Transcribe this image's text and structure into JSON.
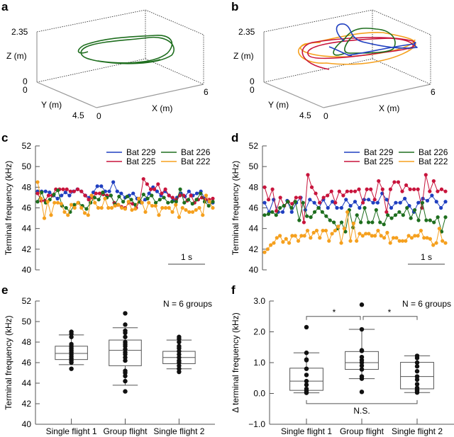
{
  "colors": {
    "bat229": "#1f3fc0",
    "bat225": "#c8143c",
    "bat226": "#1e6e1e",
    "bat222": "#f5a01e",
    "axis": "#666666"
  },
  "chart_data": [
    {
      "panel": "a",
      "type": "line3d",
      "axes": {
        "x": {
          "label": "X (m)",
          "range": [
            0,
            6
          ],
          "ticks": [
            "0",
            "6"
          ]
        },
        "y": {
          "label": "Y (m)",
          "range": [
            0,
            4.5
          ],
          "ticks": [
            "0",
            "4.5"
          ]
        },
        "z": {
          "label": "Z (m)",
          "range": [
            0,
            2.35
          ],
          "ticks": [
            "0",
            "2.35"
          ]
        }
      },
      "series": [
        {
          "name": "Bat 226",
          "color": "#1e6e1e"
        }
      ]
    },
    {
      "panel": "b",
      "type": "line3d",
      "axes": {
        "x": {
          "label": "X (m)",
          "range": [
            0,
            6
          ],
          "ticks": [
            "0",
            "6"
          ]
        },
        "y": {
          "label": "Y (m)",
          "range": [
            0,
            4.5
          ],
          "ticks": [
            "0",
            "4.5"
          ]
        },
        "z": {
          "label": "Z (m)",
          "range": [
            0,
            2.35
          ],
          "ticks": [
            "0",
            "2.35"
          ]
        }
      },
      "series": [
        {
          "name": "Bat 229",
          "color": "#1f3fc0"
        },
        {
          "name": "Bat 225",
          "color": "#c8143c"
        },
        {
          "name": "Bat 226",
          "color": "#1e6e1e"
        },
        {
          "name": "Bat 222",
          "color": "#f5a01e"
        }
      ]
    },
    {
      "panel": "c",
      "type": "line",
      "ylabel": "Terminal frequency (kHz)",
      "ylim": [
        40,
        52
      ],
      "yticks": [
        40,
        42,
        44,
        46,
        48,
        50,
        52
      ],
      "scalebar": "1 s",
      "legend": "top-right",
      "series": [
        {
          "name": "Bat 229",
          "values": [
            47.6,
            47.6,
            47.6,
            47.5,
            47.2,
            46.9,
            47.2,
            47.5,
            47.2,
            47.6,
            47.8,
            47.6,
            47.2,
            47.0,
            47.5,
            48.1,
            48.1,
            47.6,
            47.6,
            48.5,
            47.6,
            47.4,
            47.0,
            47.2,
            47.4,
            46.9,
            46.5,
            46.8,
            47.4,
            48.0,
            47.6,
            47.2,
            47.6,
            47.2,
            46.7,
            47.0,
            47.4,
            47.1,
            47.6,
            47.2,
            47.4,
            47.6,
            46.9,
            46.6,
            46.5
          ]
        },
        {
          "name": "Bat 225",
          "values": [
            47.4,
            46.7,
            46.7,
            47.2,
            47.2,
            47.8,
            47.8,
            47.8,
            47.8,
            47.6,
            47.6,
            47.8,
            47.6,
            47.2,
            46.8,
            47.0,
            47.4,
            47.4,
            47.3,
            47.2,
            47.2,
            46.5,
            46.3,
            46.1,
            46.0,
            46.5,
            46.4,
            46.0,
            46.7,
            48.8,
            48.3,
            47.8,
            47.8,
            48.3,
            47.4,
            47.8,
            47.2,
            47.0,
            46.8,
            47.2,
            47.2,
            46.7,
            47.2,
            46.5,
            46.8,
            47.0,
            46.8,
            46.8,
            46.9
          ]
        },
        {
          "name": "Bat 226",
          "values": [
            46.6,
            47.5,
            46.5,
            46.8,
            47.3,
            47.7,
            46.2,
            46.0,
            45.6,
            46.3,
            46.5,
            46.2,
            45.9,
            46.5,
            47.0,
            46.8,
            47.5,
            47.0,
            47.2,
            46.3,
            47.1,
            46.6,
            47.1,
            46.8,
            46.3,
            46.6,
            47.3,
            46.9,
            47.2,
            46.5,
            46.8,
            47.0,
            46.5,
            46.6,
            46.6,
            47.8,
            46.5,
            46.8,
            46.4,
            46.8,
            47.4,
            46.6,
            46.2,
            46.6
          ]
        },
        {
          "name": "Bat 222",
          "values": [
            48.5,
            46.9,
            45.0,
            46.6,
            45.3,
            46.5,
            46.5,
            46.4,
            45.6,
            45.3,
            46.3,
            46.0,
            46.5,
            46.0,
            45.5,
            45.3,
            47.2,
            46.5,
            46.0,
            46.0,
            46.9,
            46.0,
            46.0,
            46.2,
            46.3,
            46.0,
            45.9,
            46.6,
            45.8,
            45.9,
            46.9,
            46.5,
            45.6,
            46.5,
            46.2,
            46.2,
            45.3,
            46.0,
            46.0,
            46.0,
            45.6,
            46.3,
            45.1,
            46.0,
            45.8,
            45.6,
            45.6,
            45.8,
            46.0,
            45.3,
            47.2,
            46.6,
            46.0
          ]
        }
      ]
    },
    {
      "panel": "d",
      "type": "line",
      "ylabel": "Terminal frequency (kHz)",
      "ylim": [
        40,
        52
      ],
      "yticks": [
        40,
        42,
        44,
        46,
        48,
        50,
        52
      ],
      "scalebar": "1 s",
      "legend": "top-right",
      "series": [
        {
          "name": "Bat 229",
          "values": [
            46.5,
            45.6,
            46.8,
            45.6,
            45.6,
            46.7,
            45.6,
            46.5,
            47.0,
            45.8,
            46.8,
            46.5,
            46.0,
            46.8,
            46.0,
            46.6,
            46.0,
            46.0,
            46.8,
            46.2,
            46.6,
            46.0,
            46.8,
            46.8,
            46.5,
            46.5,
            47.4,
            46.8,
            46.0,
            46.5,
            46.5,
            46.9,
            46.2,
            45.6,
            46.5,
            46.9,
            46.7,
            47.2,
            46.6,
            46.0,
            46.6
          ]
        },
        {
          "name": "Bat 225",
          "values": [
            48.0,
            46.8,
            47.8,
            45.7,
            47.0,
            46.2,
            46.6,
            46.4,
            47.0,
            47.0,
            44.6,
            49.2,
            48.0,
            47.4,
            46.5,
            47.0,
            47.2,
            47.6,
            46.5,
            47.6,
            47.2,
            47.6,
            47.6,
            47.6,
            47.8,
            46.5,
            47.8,
            47.8,
            46.8,
            48.6,
            47.8,
            45.6,
            47.8,
            48.5,
            48.5,
            47.6,
            48.2,
            47.8,
            47.8,
            47.8,
            46.0,
            49.2,
            47.6,
            48.6,
            47.6,
            47.8,
            47.6
          ]
        },
        {
          "name": "Bat 226",
          "values": [
            45.3,
            45.4,
            45.6,
            45.3,
            46.0,
            46.2,
            46.6,
            46.0,
            46.6,
            44.8,
            46.5,
            45.2,
            45.1,
            45.6,
            46.0,
            45.6,
            45.2,
            44.8,
            44.6,
            44.0,
            44.6,
            43.7,
            45.8,
            44.1,
            45.3,
            44.6,
            46.0,
            44.6,
            44.6,
            45.8,
            44.6,
            44.4,
            45.3,
            45.0,
            45.3,
            45.6,
            45.3,
            46.0,
            45.0,
            45.8,
            44.8,
            46.5,
            44.8,
            44.8,
            44.6,
            45.1,
            43.7,
            45.1
          ]
        },
        {
          "name": "Bat 222",
          "values": [
            41.7,
            42.0,
            42.4,
            42.6,
            43.1,
            43.3,
            42.7,
            43.0,
            42.6,
            43.3,
            43.3,
            42.8,
            43.3,
            43.3,
            43.8,
            43.1,
            43.6,
            43.8,
            43.1,
            43.8,
            43.8,
            42.8,
            43.5,
            43.8,
            44.2,
            42.6,
            44.0,
            45.6,
            42.8,
            44.5,
            42.8,
            43.5,
            43.3,
            43.5,
            43.5,
            43.3,
            43.3,
            43.8,
            43.3,
            43.1,
            43.6,
            42.6,
            43.1,
            43.1,
            42.8,
            42.8,
            42.8,
            43.3,
            43.1,
            43.3,
            43.3,
            43.8,
            43.1,
            43.1,
            43.0,
            42.4,
            42.6,
            44.0,
            42.8,
            42.6
          ]
        }
      ]
    },
    {
      "panel": "e",
      "type": "box",
      "ylabel": "Terminal frequency (kHz)",
      "ylim": [
        40,
        52
      ],
      "yticks": [
        40,
        42,
        44,
        46,
        48,
        50,
        52
      ],
      "annotation": "N = 6 groups",
      "categories": [
        "Single flight 1",
        "Group flight",
        "Single flight 2"
      ],
      "boxes": [
        {
          "whisker_low": 45.8,
          "q1": 46.3,
          "median": 46.9,
          "q3": 47.6,
          "whisker_high": 48.7,
          "points": [
            45.4,
            46.0,
            46.2,
            46.4,
            46.6,
            46.8,
            47.0,
            47.2,
            47.4,
            47.6,
            47.8,
            48.5,
            48.8,
            49.0
          ]
        },
        {
          "whisker_low": 43.8,
          "q1": 45.7,
          "median": 47.2,
          "q3": 48.2,
          "whisker_high": 49.4,
          "points": [
            43.2,
            44.2,
            44.7,
            45.0,
            45.2,
            46.2,
            46.5,
            46.8,
            47.0,
            47.3,
            47.6,
            47.8,
            48.0,
            48.5,
            48.9,
            49.1,
            49.7,
            50.8
          ]
        },
        {
          "whisker_low": 45.4,
          "q1": 45.9,
          "median": 46.5,
          "q3": 47.1,
          "whisker_high": 48.2,
          "points": [
            45.1,
            45.4,
            45.7,
            46.0,
            46.2,
            46.5,
            46.8,
            47.1,
            47.4,
            47.6,
            48.0,
            48.3,
            48.5
          ]
        }
      ]
    },
    {
      "panel": "f",
      "type": "box",
      "ylabel": "Δ terminal frequency (kHz)",
      "ylim": [
        -1.0,
        3.0
      ],
      "yticks": [
        "−1.0",
        "0.0",
        "1.0",
        "2.0",
        "3.0"
      ],
      "annotation": "N = 6 groups",
      "categories": [
        "Single flight 1",
        "Group flight",
        "Single flight 2"
      ],
      "significance": [
        {
          "from": 0,
          "to": 1,
          "label": "*"
        },
        {
          "from": 1,
          "to": 2,
          "label": "*"
        },
        {
          "from": 0,
          "to": 2,
          "label": "N.S."
        }
      ],
      "boxes": [
        {
          "whisker_low": 0.02,
          "q1": 0.1,
          "median": 0.4,
          "q3": 0.82,
          "whisker_high": 1.32,
          "points": [
            0.02,
            0.05,
            0.1,
            0.15,
            0.28,
            0.4,
            0.6,
            0.8,
            1.08,
            1.1,
            1.32,
            2.15
          ]
        },
        {
          "whisker_low": 0.48,
          "q1": 0.78,
          "median": 1.0,
          "q3": 1.36,
          "whisker_high": 2.08,
          "points": [
            0.05,
            0.48,
            0.55,
            0.78,
            0.9,
            1.0,
            1.08,
            1.18,
            1.38,
            1.4,
            2.08,
            2.88
          ]
        },
        {
          "whisker_low": 0.03,
          "q1": 0.15,
          "median": 0.55,
          "q3": 1.01,
          "whisker_high": 1.22,
          "points": [
            0.03,
            0.08,
            0.12,
            0.18,
            0.3,
            0.45,
            0.55,
            0.72,
            0.88,
            1.0,
            1.15,
            1.22
          ]
        }
      ]
    }
  ]
}
